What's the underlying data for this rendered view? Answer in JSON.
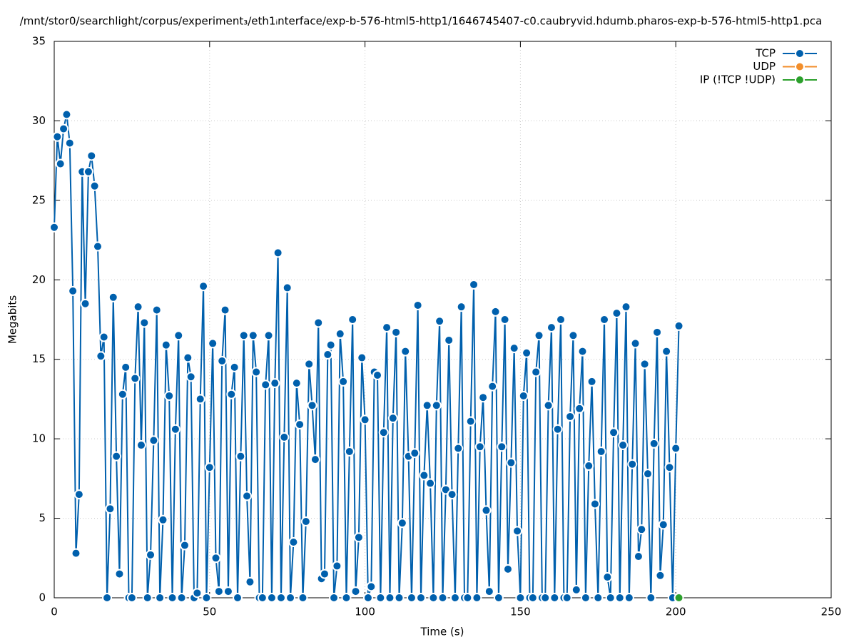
{
  "chart_data": {
    "type": "line",
    "title": "/mnt/stor0/searchlight/corpus/experiment₃/eth1ᵢnterface/exp-b-576-html5-http1/1646745407-c0.caubryvid.hdumb.pharos-exp-b-576-html5-http1.pca",
    "x_label": "Time (s)",
    "y_label": "Megabits",
    "xlim": [
      0,
      250
    ],
    "ylim": [
      0,
      35
    ],
    "xticks": [
      0,
      50,
      100,
      150,
      200,
      250
    ],
    "yticks": [
      0,
      5,
      10,
      15,
      20,
      25,
      30,
      35
    ],
    "grid": true,
    "legend": "top-right",
    "series": [
      {
        "name": "TCP",
        "color": "#0060ad",
        "x": [
          0,
          1,
          2,
          3,
          4,
          5,
          6,
          7,
          8,
          9,
          10,
          11,
          12,
          13,
          14,
          15,
          16,
          17,
          18,
          19,
          20,
          21,
          22,
          23,
          24,
          25,
          26,
          27,
          28,
          29,
          30,
          31,
          32,
          33,
          34,
          35,
          36,
          37,
          38,
          39,
          40,
          41,
          42,
          43,
          44,
          45,
          46,
          47,
          48,
          49,
          50,
          51,
          52,
          53,
          54,
          55,
          56,
          57,
          58,
          59,
          60,
          61,
          62,
          63,
          64,
          65,
          66,
          67,
          68,
          69,
          70,
          71,
          72,
          73,
          74,
          75,
          76,
          77,
          78,
          79,
          80,
          81,
          82,
          83,
          84,
          85,
          86,
          87,
          88,
          89,
          90,
          91,
          92,
          93,
          94,
          95,
          96,
          97,
          98,
          99,
          100,
          101,
          102,
          103,
          104,
          105,
          106,
          107,
          108,
          109,
          110,
          111,
          112,
          113,
          114,
          115,
          116,
          117,
          118,
          119,
          120,
          121,
          122,
          123,
          124,
          125,
          126,
          127,
          128,
          129,
          130,
          131,
          132,
          133,
          134,
          135,
          136,
          137,
          138,
          139,
          140,
          141,
          142,
          143,
          144,
          145,
          146,
          147,
          148,
          149,
          150,
          151,
          152,
          153,
          154,
          155,
          156,
          157,
          158,
          159,
          160,
          161,
          162,
          163,
          164,
          165,
          166,
          167,
          168,
          169,
          170,
          171,
          172,
          173,
          174,
          175,
          176,
          177,
          178,
          179,
          180,
          181,
          182,
          183,
          184,
          185,
          186,
          187,
          188,
          189,
          190,
          191,
          192,
          193,
          194,
          195,
          196,
          197,
          198,
          199,
          200,
          201
        ],
        "values": [
          23.3,
          29.0,
          27.3,
          29.5,
          30.4,
          28.6,
          19.3,
          2.8,
          6.5,
          26.8,
          18.5,
          26.8,
          27.8,
          25.9,
          22.1,
          15.2,
          16.4,
          0,
          5.6,
          18.9,
          8.9,
          1.5,
          12.8,
          14.5,
          0,
          0,
          13.8,
          18.3,
          9.6,
          17.3,
          0,
          2.7,
          9.9,
          18.1,
          0,
          4.9,
          15.9,
          12.7,
          0,
          10.6,
          16.5,
          0,
          3.3,
          15.1,
          13.9,
          0,
          0.3,
          12.5,
          19.6,
          0,
          8.2,
          16.0,
          2.5,
          0.4,
          14.9,
          18.1,
          0.4,
          12.8,
          14.5,
          0,
          8.9,
          16.5,
          6.4,
          1.0,
          16.5,
          14.2,
          0,
          0,
          13.4,
          16.5,
          0,
          13.5,
          21.7,
          0,
          10.1,
          19.5,
          0,
          3.5,
          13.5,
          10.9,
          0,
          4.8,
          14.7,
          12.1,
          8.7,
          17.3,
          1.2,
          1.5,
          15.3,
          15.9,
          0,
          2.0,
          16.6,
          13.6,
          0,
          9.2,
          17.5,
          0.4,
          3.8,
          15.1,
          11.2,
          0,
          0.7,
          14.2,
          14.0,
          0,
          10.4,
          17.0,
          0,
          11.3,
          16.7,
          0,
          4.7,
          15.5,
          8.9,
          0,
          9.1,
          18.4,
          0,
          7.7,
          12.1,
          7.2,
          0,
          12.1,
          17.4,
          0,
          6.8,
          16.2,
          6.5,
          0,
          9.4,
          18.3,
          0,
          0,
          11.1,
          19.7,
          0,
          9.5,
          12.6,
          5.5,
          0.4,
          13.3,
          18.0,
          0,
          9.5,
          17.5,
          1.8,
          8.5,
          15.7,
          4.2,
          0,
          12.7,
          15.4,
          0,
          0,
          14.2,
          16.5,
          0,
          0,
          12.1,
          17.0,
          0,
          10.6,
          17.5,
          0,
          0,
          11.4,
          16.5,
          0.5,
          11.9,
          15.5,
          0,
          8.3,
          13.6,
          5.9,
          0,
          9.2,
          17.5,
          1.3,
          0,
          10.4,
          17.9,
          0,
          9.6,
          18.3,
          0,
          8.4,
          16.0,
          2.6,
          4.3,
          14.7,
          7.8,
          0,
          9.7,
          16.7,
          1.4,
          4.6,
          15.5,
          8.2,
          0,
          9.4,
          17.1
        ]
      },
      {
        "name": "UDP",
        "color": "#f28e2b",
        "x": [],
        "values": []
      },
      {
        "name": "IP (!TCP  !UDP)",
        "color": "#2ca02c",
        "x": [
          201
        ],
        "values": [
          0
        ]
      }
    ]
  }
}
